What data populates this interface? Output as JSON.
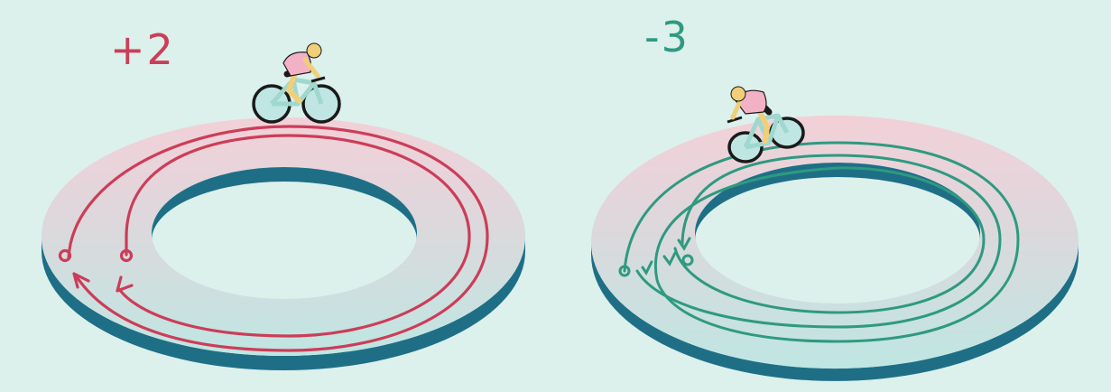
{
  "panels": [
    {
      "label": "+2",
      "loop_count": 2,
      "direction": "counterclockwise",
      "color": "#cc3d58"
    },
    {
      "label": "-3",
      "loop_count": 3,
      "direction": "clockwise",
      "color": "#2e9a80"
    }
  ],
  "colors": {
    "background": "#dcf0ec",
    "ring_top_near": "#bfe6e2",
    "ring_top_far": "#f3d0d8",
    "ring_side": "#1e6f86",
    "rider_jersey": "#f2b2c6",
    "rider_skin": "#f0cf78",
    "bike_frame": "#9fd8cf"
  },
  "icons": [
    "cyclist-icon",
    "start-circle-icon",
    "arrow-head-icon"
  ]
}
